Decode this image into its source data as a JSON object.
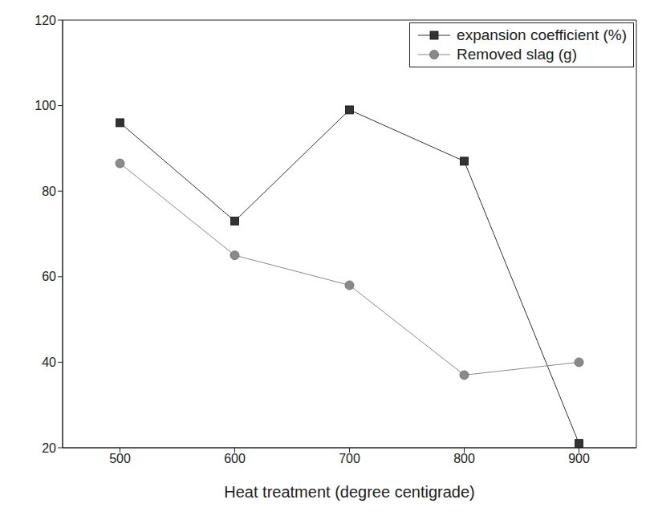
{
  "chart_data": {
    "type": "line",
    "x_label": "Heat treatment (degree centigrade)",
    "x": [
      500,
      600,
      700,
      800,
      900
    ],
    "series": [
      {
        "name": "expansion coefficient (%)",
        "color": "#333333",
        "marker": "square",
        "values": [
          96,
          73,
          99,
          87,
          21
        ]
      },
      {
        "name": "Removed slag (g)",
        "color": "#8a8a8a",
        "marker": "circle",
        "values": [
          86.5,
          65,
          58,
          37,
          40
        ]
      }
    ],
    "xlim": [
      450,
      950
    ],
    "xticks": [
      500,
      600,
      700,
      800,
      900
    ],
    "ylim": [
      20,
      120
    ],
    "yticks": [
      20,
      40,
      60,
      80,
      100,
      120
    ],
    "grid": false,
    "legend": "upper right"
  }
}
